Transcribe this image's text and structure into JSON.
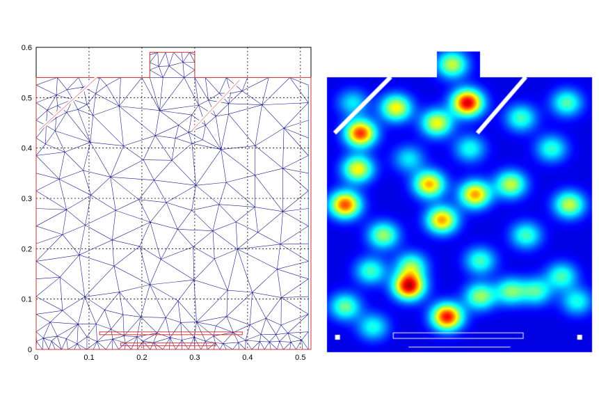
{
  "chart_data": [
    {
      "type": "mesh",
      "title": "",
      "xlabel": "",
      "ylabel": "",
      "xlim": [
        0,
        0.52
      ],
      "ylim": [
        0,
        0.6
      ],
      "x_ticks": [
        0,
        0.1,
        0.2,
        0.3,
        0.4,
        0.5
      ],
      "x_tick_labels": [
        "0",
        "0.1",
        "0.2",
        "0.3",
        "0.4",
        "0.5"
      ],
      "y_ticks": [
        0,
        0.1,
        0.2,
        0.3,
        0.4,
        0.5,
        0.6
      ],
      "y_tick_labels": [
        "0",
        "0.1",
        "0.2",
        "0.3",
        "0.4",
        "0.5",
        "0.6"
      ],
      "grid": true,
      "mesh_color": "#1a1a8c",
      "boundary_color": "#d03030",
      "domain_outline": [
        [
          0,
          0
        ],
        [
          0.52,
          0
        ],
        [
          0.52,
          0.54
        ],
        [
          0.3,
          0.54
        ],
        [
          0.3,
          0.59
        ],
        [
          0.215,
          0.59
        ],
        [
          0.215,
          0.54
        ],
        [
          0,
          0.54
        ]
      ],
      "slots": [
        {
          "from": [
            0.005,
            0.435
          ],
          "to": [
            0.115,
            0.54
          ]
        },
        {
          "from": [
            0.295,
            0.435
          ],
          "to": [
            0.385,
            0.535
          ]
        }
      ],
      "bottom_strips": [
        {
          "x": [
            0.12,
            0.39
          ],
          "y": 0.032
        },
        {
          "x": [
            0.16,
            0.34
          ],
          "y": 0.01
        }
      ]
    },
    {
      "type": "heatmap",
      "title": "",
      "colormap": "jet",
      "colors": [
        "#00008f",
        "#0000ff",
        "#00ffff",
        "#ffff00",
        "#ff0000",
        "#800000"
      ],
      "xlim": [
        0,
        0.52
      ],
      "ylim": [
        0,
        0.59
      ],
      "hotspots": [
        {
          "x": 0.065,
          "y": 0.43,
          "value": 0.85
        },
        {
          "x": 0.135,
          "y": 0.48,
          "value": 0.62
        },
        {
          "x": 0.215,
          "y": 0.45,
          "value": 0.6
        },
        {
          "x": 0.275,
          "y": 0.49,
          "value": 0.95
        },
        {
          "x": 0.245,
          "y": 0.565,
          "value": 0.55
        },
        {
          "x": 0.06,
          "y": 0.36,
          "value": 0.62
        },
        {
          "x": 0.2,
          "y": 0.33,
          "value": 0.7
        },
        {
          "x": 0.29,
          "y": 0.31,
          "value": 0.72
        },
        {
          "x": 0.035,
          "y": 0.29,
          "value": 0.82
        },
        {
          "x": 0.225,
          "y": 0.26,
          "value": 0.72
        },
        {
          "x": 0.11,
          "y": 0.23,
          "value": 0.5
        },
        {
          "x": 0.36,
          "y": 0.33,
          "value": 0.55
        },
        {
          "x": 0.475,
          "y": 0.29,
          "value": 0.55
        },
        {
          "x": 0.47,
          "y": 0.49,
          "value": 0.42
        },
        {
          "x": 0.38,
          "y": 0.46,
          "value": 0.4
        },
        {
          "x": 0.44,
          "y": 0.4,
          "value": 0.38
        },
        {
          "x": 0.165,
          "y": 0.17,
          "value": 0.45
        },
        {
          "x": 0.085,
          "y": 0.16,
          "value": 0.4
        },
        {
          "x": 0.3,
          "y": 0.18,
          "value": 0.4
        },
        {
          "x": 0.16,
          "y": 0.13,
          "value": 0.95
        },
        {
          "x": 0.235,
          "y": 0.07,
          "value": 0.9
        },
        {
          "x": 0.035,
          "y": 0.09,
          "value": 0.45
        },
        {
          "x": 0.09,
          "y": 0.05,
          "value": 0.35
        },
        {
          "x": 0.3,
          "y": 0.11,
          "value": 0.5
        },
        {
          "x": 0.36,
          "y": 0.12,
          "value": 0.45
        },
        {
          "x": 0.41,
          "y": 0.12,
          "value": 0.4
        },
        {
          "x": 0.46,
          "y": 0.15,
          "value": 0.4
        },
        {
          "x": 0.49,
          "y": 0.1,
          "value": 0.35
        },
        {
          "x": 0.39,
          "y": 0.23,
          "value": 0.4
        },
        {
          "x": 0.05,
          "y": 0.49,
          "value": 0.3
        },
        {
          "x": 0.28,
          "y": 0.4,
          "value": 0.35
        },
        {
          "x": 0.16,
          "y": 0.38,
          "value": 0.3
        }
      ]
    }
  ]
}
